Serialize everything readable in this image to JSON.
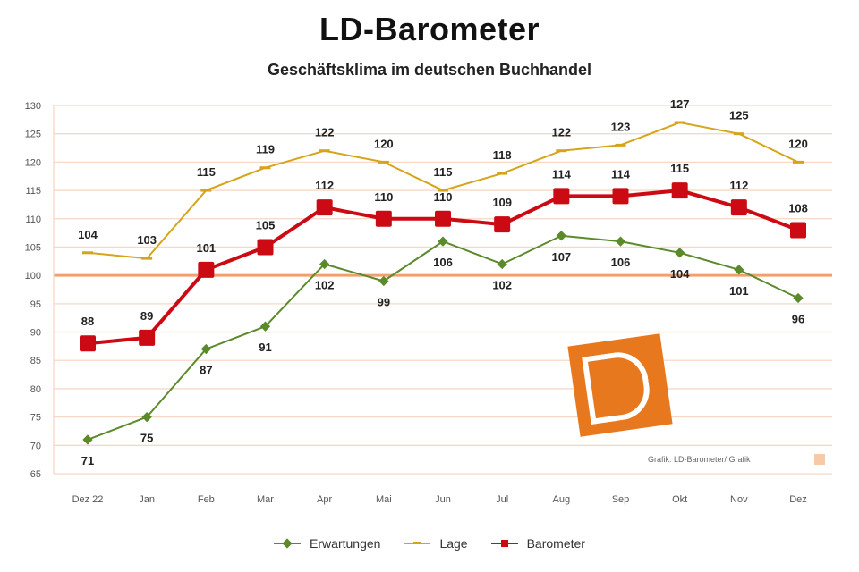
{
  "chart_data": {
    "type": "line",
    "title": "LD-Barometer",
    "subtitle": "Geschäftsklima im deutschen Buchhandel",
    "categories": [
      "Dez 22",
      "Jan",
      "Feb",
      "Mar",
      "Apr",
      "Mai",
      "Jun",
      "Jul",
      "Aug",
      "Sep",
      "Okt",
      "Nov",
      "Dez"
    ],
    "y_ticks": [
      65,
      70,
      75,
      80,
      85,
      90,
      95,
      100,
      105,
      110,
      115,
      120,
      125,
      130
    ],
    "ylim": [
      65,
      130
    ],
    "grid": true,
    "reference_line": 100,
    "legend_position": "bottom",
    "series": [
      {
        "name": "Erwartungen",
        "color": "#5b8a2b",
        "marker": "diamond",
        "values": [
          71,
          75,
          87,
          91,
          102,
          99,
          106,
          102,
          107,
          106,
          104,
          101,
          96
        ],
        "labels": [
          "71",
          "75",
          "87",
          "91",
          "102",
          "99",
          "106",
          "102",
          "107",
          "106",
          "104",
          "101",
          "96"
        ],
        "label_position": "below"
      },
      {
        "name": "Lage",
        "color": "#d6a41a",
        "marker": "dash",
        "values": [
          104,
          103,
          115,
          119,
          122,
          120,
          115,
          118,
          122,
          123,
          127,
          125,
          120
        ],
        "labels": [
          "104",
          "103",
          "115",
          "119",
          "122",
          "120",
          "115",
          "118",
          "122",
          "123",
          "127",
          "125",
          "120"
        ],
        "label_position": "above"
      },
      {
        "name": "Barometer",
        "color": "#cc0a14",
        "marker": "square",
        "values": [
          88,
          89,
          101,
          105,
          112,
          110,
          110,
          109,
          114,
          114,
          115,
          112,
          108
        ],
        "labels": [
          "88",
          "89",
          "101",
          "105",
          "112",
          "110",
          "110",
          "109",
          "114",
          "114",
          "115",
          "112",
          "108"
        ],
        "label_position": "above"
      }
    ]
  },
  "source_note": "Grafik: LD-Barometer/ Grafik",
  "logo": {
    "name": "ld-logo",
    "color": "#e8781e"
  }
}
